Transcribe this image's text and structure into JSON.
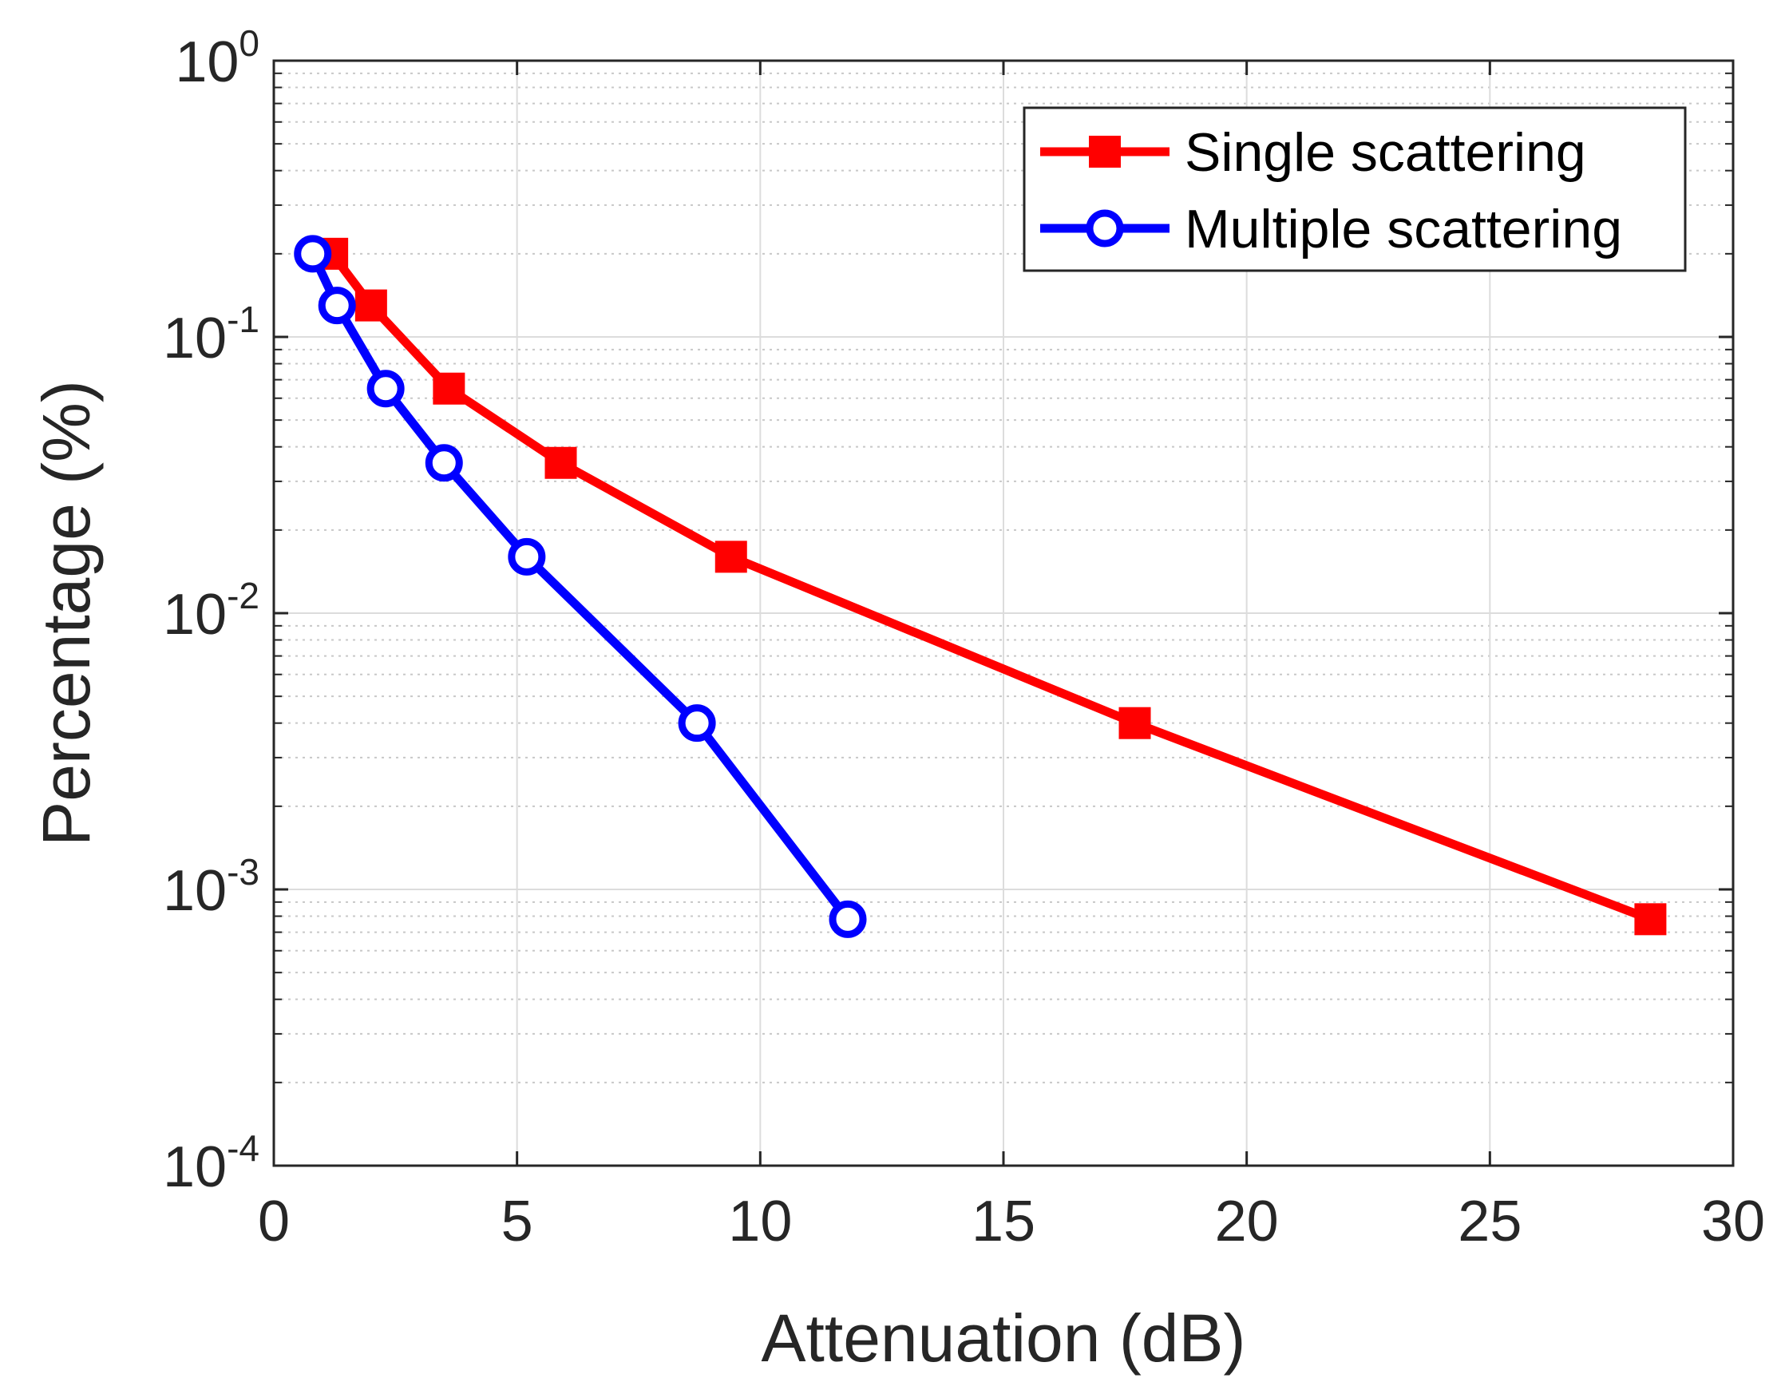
{
  "chart_data": {
    "type": "line",
    "title": "",
    "xlabel": "Attenuation (dB)",
    "ylabel": "Percentage (%)",
    "xlim": [
      0,
      30
    ],
    "ylim": [
      0.0001,
      1
    ],
    "yscale": "log",
    "grid": true,
    "legend_position": "top-right",
    "x_ticks": [
      0,
      5,
      10,
      15,
      20,
      25,
      30
    ],
    "x_tick_labels": [
      "0",
      "5",
      "10",
      "15",
      "20",
      "25",
      "30"
    ],
    "y_ticks": [
      {
        "value": 1,
        "base": "10",
        "exp": "0"
      },
      {
        "value": 0.1,
        "base": "10",
        "exp": "-1"
      },
      {
        "value": 0.01,
        "base": "10",
        "exp": "-2"
      },
      {
        "value": 0.001,
        "base": "10",
        "exp": "-3"
      },
      {
        "value": 0.0001,
        "base": "10",
        "exp": "-4"
      }
    ],
    "series": [
      {
        "name": "Single scattering",
        "color": "#ff0000",
        "marker": "square",
        "x": [
          1.2,
          2.0,
          3.6,
          5.9,
          9.4,
          17.7,
          28.3
        ],
        "y": [
          0.2,
          0.13,
          0.065,
          0.035,
          0.016,
          0.004,
          0.00078
        ]
      },
      {
        "name": "Multiple scattering",
        "color": "#0000ff",
        "marker": "circle",
        "x": [
          0.8,
          1.3,
          2.3,
          3.5,
          5.2,
          8.7,
          11.8
        ],
        "y": [
          0.2,
          0.13,
          0.065,
          0.035,
          0.016,
          0.004,
          0.00078
        ]
      }
    ]
  }
}
